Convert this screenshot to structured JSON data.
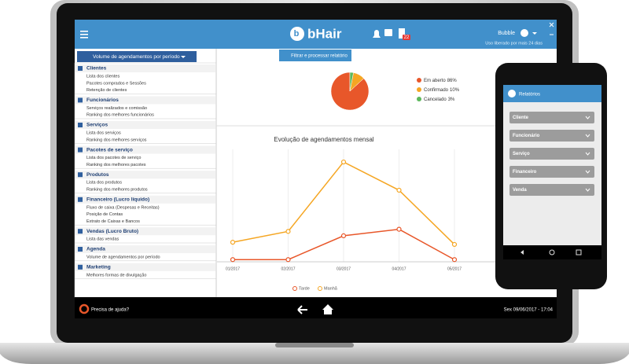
{
  "header": {
    "logo": "bHair",
    "notification_count": "22",
    "user": "Bubble",
    "subscription": "Uso liberado por mais 24 dias"
  },
  "report_selector": "Volume de agendamentos por período",
  "filter_button": "Filtrar e processar relatório",
  "menu": [
    {
      "title": "Clientes",
      "items": [
        "Lista dos clientes",
        "Pacotes comprados e Sessões",
        "Retenção de clientes"
      ]
    },
    {
      "title": "Funcionários",
      "items": [
        "Serviços realizados e comissão",
        "Ranking dos melhores funcionários"
      ]
    },
    {
      "title": "Serviços",
      "items": [
        "Lista dos serviços",
        "Ranking dos melhores serviços"
      ]
    },
    {
      "title": "Pacotes de serviço",
      "items": [
        "Lista dos pacotes de serviço",
        "Ranking dos melhores pacotes"
      ]
    },
    {
      "title": "Produtos",
      "items": [
        "Lista dos produtos",
        "Ranking dos melhores produtos"
      ]
    },
    {
      "title": "Financeiro (Lucro líquido)",
      "items": [
        "Fluxo de caixa (Despesas e Receitas)",
        "Posição de Contas",
        "Extrato de Caixas e Bancos"
      ]
    },
    {
      "title": "Vendas (Lucro Bruto)",
      "items": [
        "Lista das vendas"
      ]
    },
    {
      "title": "Agenda",
      "items": [
        "Volume de agendamentos por período"
      ]
    },
    {
      "title": "Marketing",
      "items": [
        "Melhores formas de divulgação"
      ]
    }
  ],
  "pie_chart": {
    "type": "pie",
    "categories": [
      "Em aberto",
      "Confirmado",
      "Cancelado"
    ],
    "values": [
      86,
      10,
      3
    ],
    "value_labels": [
      "86%",
      "10%",
      "3%"
    ],
    "colors": [
      "#e8572a",
      "#f5a623",
      "#5cb85c"
    ]
  },
  "line_chart": {
    "type": "line",
    "title": "Evolução de agendamentos mensal",
    "categories": [
      "01/2017",
      "02/2017",
      "03/2017",
      "04/2017",
      "05/2017"
    ],
    "series": [
      {
        "name": "Tarde",
        "color": "#e8572a",
        "values": [
          1,
          1,
          12,
          15,
          1
        ]
      },
      {
        "name": "Manhã",
        "color": "#f5a623",
        "values": [
          9,
          14,
          46,
          33,
          8
        ]
      }
    ],
    "ylim": [
      0,
      50
    ]
  },
  "footer": {
    "help": "Precisa de ajuda?",
    "datetime": "Sex 09/06/2017 - 17:04"
  },
  "phone": {
    "title": "Relatórios",
    "items": [
      "Cliente",
      "Funcionário",
      "Serviço",
      "Financeiro",
      "Venda"
    ]
  }
}
